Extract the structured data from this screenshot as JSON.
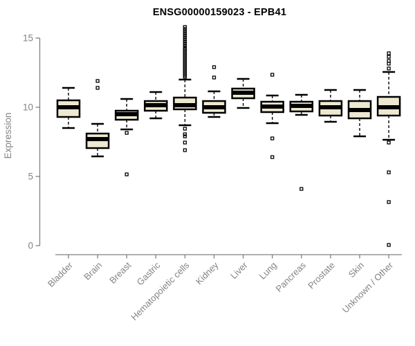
{
  "chart_data": {
    "type": "boxplot",
    "title": "ENSG00000159023 - EPB41",
    "xlabel": "",
    "ylabel": "Expression",
    "ylim": [
      0,
      16
    ],
    "yticks": [
      0,
      5,
      10,
      15
    ],
    "grid": false,
    "legend": "none",
    "box_fill_color": "#EDE8D0",
    "box_border_color": "#000000",
    "axis_color": "#808080",
    "label_color": "#838383",
    "categories": [
      "Bladder",
      "Brain",
      "Breast",
      "Gastric",
      "Hematopoietic cells",
      "Kidney",
      "Liver",
      "Lung",
      "Pancreas",
      "Prostate",
      "Skin",
      "Unknown / Other"
    ],
    "series": [
      {
        "name": "Bladder",
        "low": 8.5,
        "q1": 9.3,
        "median": 10.0,
        "q3": 10.5,
        "high": 11.4,
        "outliers": []
      },
      {
        "name": "Brain",
        "low": 6.45,
        "q1": 7.05,
        "median": 7.7,
        "q3": 8.1,
        "high": 8.8,
        "outliers": [
          11.9,
          11.4
        ]
      },
      {
        "name": "Breast",
        "low": 8.4,
        "q1": 9.1,
        "median": 9.5,
        "q3": 9.75,
        "high": 10.6,
        "outliers": [
          8.15,
          5.15
        ]
      },
      {
        "name": "Gastric",
        "low": 9.2,
        "q1": 9.75,
        "median": 10.15,
        "q3": 10.45,
        "high": 11.1,
        "outliers": []
      },
      {
        "name": "Hematopoietic cells",
        "low": 8.7,
        "q1": 9.85,
        "median": 10.15,
        "q3": 10.7,
        "high": 12.0,
        "outliers": [
          15.8,
          15.65,
          15.5,
          15.35,
          15.2,
          15.05,
          14.9,
          14.75,
          14.6,
          14.45,
          14.3,
          14.2,
          14.1,
          14.0,
          13.9,
          13.8,
          13.7,
          13.6,
          13.5,
          13.4,
          13.3,
          13.2,
          13.1,
          13.0,
          12.9,
          12.8,
          12.7,
          12.6,
          12.5,
          12.4,
          12.3,
          12.2,
          8.45,
          8.05,
          7.9,
          7.45,
          6.9
        ]
      },
      {
        "name": "Kidney",
        "low": 9.3,
        "q1": 9.6,
        "median": 10.0,
        "q3": 10.45,
        "high": 11.15,
        "outliers": [
          12.9,
          12.15
        ]
      },
      {
        "name": "Liver",
        "low": 9.95,
        "q1": 10.65,
        "median": 11.05,
        "q3": 11.35,
        "high": 12.05,
        "outliers": []
      },
      {
        "name": "Lung",
        "low": 8.85,
        "q1": 9.65,
        "median": 10.05,
        "q3": 10.4,
        "high": 10.85,
        "outliers": [
          12.35,
          7.75,
          6.4
        ]
      },
      {
        "name": "Pancreas",
        "low": 9.45,
        "q1": 9.7,
        "median": 10.1,
        "q3": 10.4,
        "high": 10.9,
        "outliers": [
          4.1
        ]
      },
      {
        "name": "Prostate",
        "low": 8.95,
        "q1": 9.4,
        "median": 10.0,
        "q3": 10.45,
        "high": 11.25,
        "outliers": []
      },
      {
        "name": "Skin",
        "low": 7.9,
        "q1": 9.2,
        "median": 9.8,
        "q3": 10.45,
        "high": 11.25,
        "outliers": []
      },
      {
        "name": "Unknown / Other",
        "low": 7.65,
        "q1": 9.4,
        "median": 10.0,
        "q3": 10.75,
        "high": 12.55,
        "outliers": [
          13.9,
          13.65,
          13.35,
          13.15,
          12.8,
          7.45,
          5.3,
          3.15,
          0.05
        ]
      }
    ]
  }
}
